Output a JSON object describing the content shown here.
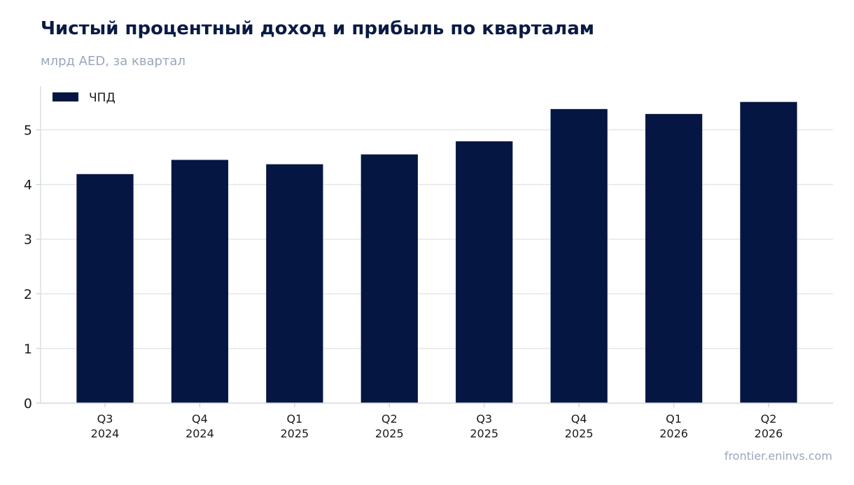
{
  "header": {
    "title": "Чистый процентный доход и прибыль по кварталам",
    "subtitle": "млрд AED, за квартал"
  },
  "footer": {
    "source": "frontier.eninvs.com"
  },
  "chart_data": {
    "type": "bar",
    "categories": [
      [
        "Q3",
        "2024"
      ],
      [
        "Q4",
        "2024"
      ],
      [
        "Q1",
        "2025"
      ],
      [
        "Q2",
        "2025"
      ],
      [
        "Q3",
        "2025"
      ],
      [
        "Q4",
        "2025"
      ],
      [
        "Q1",
        "2026"
      ],
      [
        "Q2",
        "2026"
      ]
    ],
    "series": [
      {
        "name": "ЧПД",
        "values": [
          4.19,
          4.45,
          4.37,
          4.55,
          4.79,
          5.38,
          5.29,
          5.51
        ],
        "color": "#061642"
      }
    ],
    "ylim": [
      0,
      5.8
    ],
    "yticks": [
      0,
      1,
      2,
      3,
      4,
      5
    ],
    "grid": true,
    "legend_position": "top-left",
    "gridline_color": "#e3e6ea"
  }
}
